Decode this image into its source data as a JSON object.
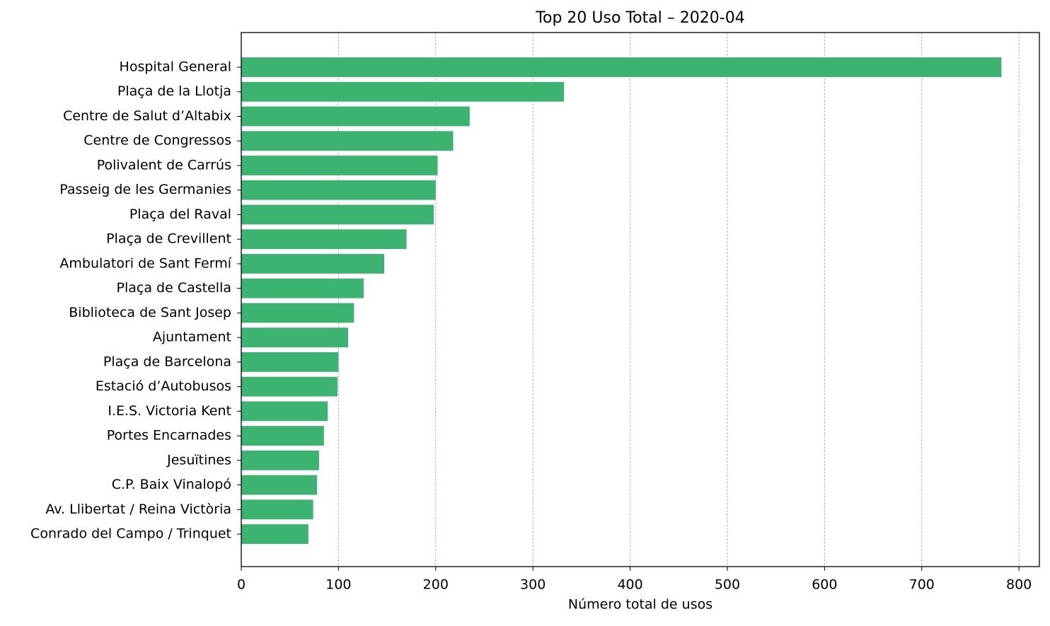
{
  "chart_data": {
    "type": "barh",
    "title": "Top 20 Uso Total – 2020-04",
    "x_label": "Número total de usos",
    "categories": [
      "Hospital General",
      "Plaça de la Llotja",
      "Centre de Salut d’Altabix",
      "Centre de Congressos",
      "Polivalent de Carrús",
      "Passeig de les Germanies",
      "Plaça del Raval",
      "Plaça de Crevillent",
      "Ambulatori de Sant Fermí",
      "Plaça de Castella",
      "Biblioteca de Sant Josep",
      "Ajuntament",
      "Plaça de Barcelona",
      "Estació d’Autobusos",
      "I.E.S. Victoria Kent",
      "Portes Encarnades",
      "Jesuïtines",
      "C.P. Baix Vinalopó",
      "Av. Llibertat / Reina Victòria",
      "Conrado del Campo / Trinquet"
    ],
    "values": [
      782,
      332,
      235,
      218,
      202,
      200,
      198,
      170,
      147,
      126,
      116,
      110,
      100,
      99,
      89,
      85,
      80,
      78,
      74,
      69
    ],
    "color": "#3cb371",
    "xlim": [
      0,
      821
    ],
    "xticks": [
      0,
      100,
      200,
      300,
      400,
      500,
      600,
      700,
      800
    ],
    "grid": true
  }
}
